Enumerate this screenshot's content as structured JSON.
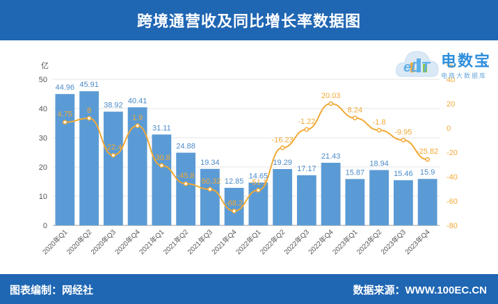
{
  "header": {
    "title": "跨境通营收及同比增长率数据图"
  },
  "footer": {
    "left": "图表编制：网经社",
    "right": "数据来源：WWW.100EC.CN"
  },
  "logo": {
    "name": "电数宝",
    "sub": "电商大数据库",
    "mark": "eDT"
  },
  "colors": {
    "bar": "#5b9bd5",
    "line": "#f0a935",
    "header": "#1f66b3"
  },
  "chart_data": {
    "type": "bar",
    "categories": [
      "2020年Q1",
      "2020年Q2",
      "2020年Q3",
      "2020年Q4",
      "2021年Q1",
      "2021年Q2",
      "2021年Q3",
      "2021年Q4",
      "2022年Q1",
      "2022年Q2",
      "2022年Q3",
      "2022年Q4",
      "2023年Q1",
      "2023年Q2",
      "2023年Q3",
      "2023年Q4"
    ],
    "series": [
      {
        "type": "bar",
        "axis": "left",
        "values": [
          44.96,
          45.91,
          38.92,
          40.41,
          31.11,
          24.88,
          19.34,
          12.85,
          14.65,
          19.29,
          17.17,
          21.43,
          15.87,
          18.94,
          15.46,
          15.9
        ],
        "labels": [
          "44.96",
          "45.91",
          "38.92",
          "40.41",
          "31.11",
          "24.88",
          "19.34",
          "12.85",
          "14.65",
          "19.29",
          "17.17",
          "21.43",
          "15.87",
          "18.94",
          "15.46",
          "15.9"
        ]
      },
      {
        "type": "line",
        "axis": "right",
        "values": [
          4.75,
          8,
          -22.4,
          1.9,
          -30.8,
          -45.8,
          -50.32,
          -68.2,
          -51.1,
          -16.23,
          -1.22,
          20.03,
          8.24,
          -1.8,
          -9.95,
          -25.82
        ],
        "labels": [
          "4.75",
          "8",
          "-22.4",
          "1.9",
          "-30.8",
          "-45.8",
          "-50.32",
          "-68.2",
          "-51.1",
          "-16.23",
          "-1.22",
          "20.03",
          "8.24",
          "-1.8",
          "-9.95",
          "-25.82"
        ]
      }
    ],
    "ylabel_left": "亿",
    "ylabel_right": "%",
    "ylim_left": [
      0,
      50
    ],
    "yticks_left": [
      0,
      10,
      20,
      30,
      40,
      50
    ],
    "ylim_right": [
      -80,
      40
    ],
    "yticks_right": [
      -80,
      -60,
      -40,
      -20,
      0,
      20,
      40
    ],
    "grid": true
  }
}
